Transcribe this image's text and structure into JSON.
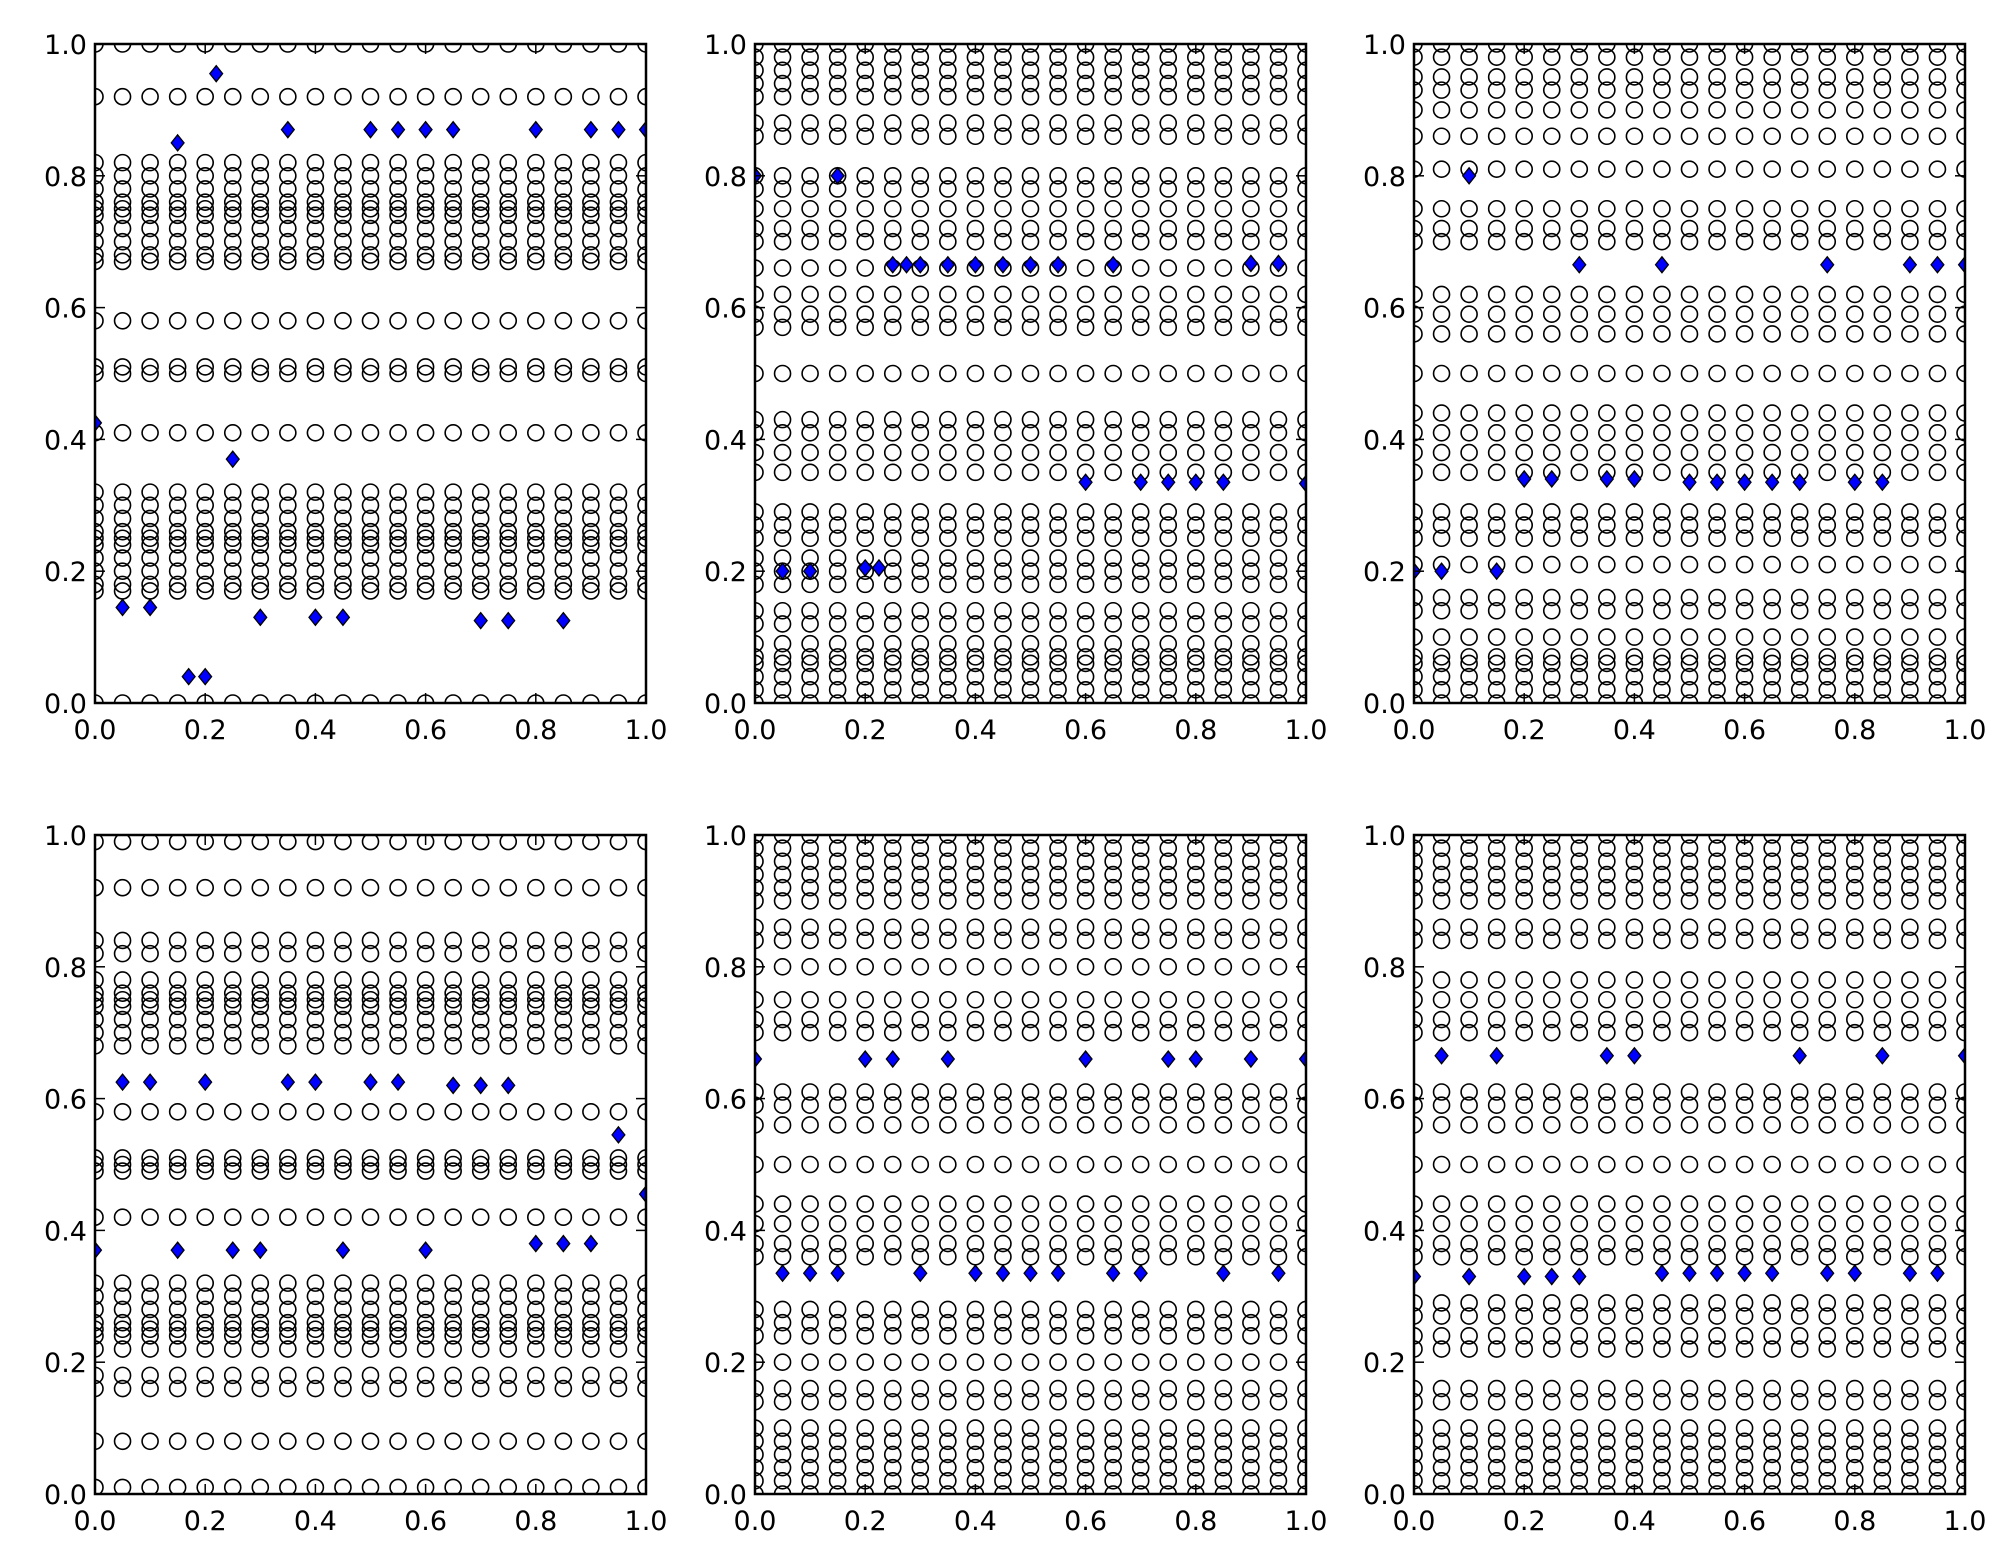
{
  "chart_data": [
    {
      "type": "scatter",
      "xlim": [
        0,
        1
      ],
      "ylim": [
        0,
        1
      ],
      "xticks": [
        {
          "value": 0,
          "label": "0.0"
        },
        {
          "value": 0.2,
          "label": "0.2"
        },
        {
          "value": 0.4,
          "label": "0.4"
        },
        {
          "value": 0.6,
          "label": "0.6"
        },
        {
          "value": 0.8,
          "label": "0.8"
        },
        {
          "value": 1,
          "label": "1.0"
        }
      ],
      "yticks": [
        {
          "value": 0,
          "label": "0.0"
        },
        {
          "value": 0.2,
          "label": "0.2"
        },
        {
          "value": 0.4,
          "label": "0.4"
        },
        {
          "value": 0.6,
          "label": "0.6"
        },
        {
          "value": 0.8,
          "label": "0.8"
        },
        {
          "value": 1,
          "label": "1.0"
        }
      ],
      "series": [
        {
          "marker": "circle",
          "color": "none",
          "edgecolor": "#000000",
          "grid_x": [
            0,
            0.05,
            0.1,
            0.15,
            0.2,
            0.25,
            0.3,
            0.35,
            0.4,
            0.45,
            0.5,
            0.55,
            0.6,
            0.65,
            0.7,
            0.75,
            0.8,
            0.85,
            0.9,
            0.95,
            1
          ],
          "grid_y": [
            0,
            0.17,
            0.18,
            0.2,
            0.22,
            0.24,
            0.25,
            0.26,
            0.28,
            0.3,
            0.32,
            0.41,
            0.5,
            0.51,
            0.58,
            0.67,
            0.68,
            0.7,
            0.72,
            0.74,
            0.75,
            0.76,
            0.78,
            0.8,
            0.82,
            0.92,
            1
          ]
        },
        {
          "marker": "diamond",
          "color": "#0000ff",
          "edgecolor": "#000000",
          "x": [
            0,
            0.05,
            0.1,
            0.15,
            0.17,
            0.2,
            0.22,
            0.25,
            0.3,
            0.35,
            0.4,
            0.45,
            0.5,
            0.55,
            0.6,
            0.65,
            0.7,
            0.75,
            0.8,
            0.85,
            0.9,
            0.95,
            1
          ],
          "y": [
            0.425,
            0.145,
            0.145,
            0.85,
            0.04,
            0.04,
            0.955,
            0.37,
            0.13,
            0.87,
            0.13,
            0.13,
            0.87,
            0.87,
            0.87,
            0.87,
            0.125,
            0.125,
            0.87,
            0.125,
            0.87,
            0.87,
            0.87
          ]
        }
      ]
    },
    {
      "type": "scatter",
      "xlim": [
        0,
        1
      ],
      "ylim": [
        0,
        1
      ],
      "xticks": [
        {
          "value": 0,
          "label": "0.0"
        },
        {
          "value": 0.2,
          "label": "0.2"
        },
        {
          "value": 0.4,
          "label": "0.4"
        },
        {
          "value": 0.6,
          "label": "0.6"
        },
        {
          "value": 0.8,
          "label": "0.8"
        },
        {
          "value": 1,
          "label": "1.0"
        }
      ],
      "yticks": [
        {
          "value": 0,
          "label": "0.0"
        },
        {
          "value": 0.2,
          "label": "0.2"
        },
        {
          "value": 0.4,
          "label": "0.4"
        },
        {
          "value": 0.6,
          "label": "0.6"
        },
        {
          "value": 0.8,
          "label": "0.8"
        },
        {
          "value": 1,
          "label": "1.0"
        }
      ],
      "series": [
        {
          "marker": "circle",
          "color": "none",
          "edgecolor": "#000000",
          "grid_x": [
            0,
            0.05,
            0.1,
            0.15,
            0.2,
            0.25,
            0.3,
            0.35,
            0.4,
            0.45,
            0.5,
            0.55,
            0.6,
            0.65,
            0.7,
            0.75,
            0.8,
            0.85,
            0.9,
            0.95,
            1
          ],
          "grid_y": [
            0,
            0.02,
            0.04,
            0.06,
            0.07,
            0.09,
            0.12,
            0.14,
            0.18,
            0.2,
            0.22,
            0.25,
            0.27,
            0.29,
            0.35,
            0.38,
            0.41,
            0.43,
            0.5,
            0.57,
            0.59,
            0.62,
            0.66,
            0.7,
            0.72,
            0.75,
            0.78,
            0.8,
            0.86,
            0.88,
            0.92,
            0.94,
            0.96,
            0.98,
            1
          ]
        },
        {
          "marker": "diamond",
          "color": "#0000ff",
          "edgecolor": "#000000",
          "x": [
            0,
            0.05,
            0.1,
            0.15,
            0.2,
            0.225,
            0.25,
            0.275,
            0.3,
            0.35,
            0.4,
            0.45,
            0.5,
            0.55,
            0.6,
            0.65,
            0.7,
            0.75,
            0.8,
            0.85,
            0.9,
            0.95,
            1
          ],
          "y": [
            0.8,
            0.2,
            0.2,
            0.8,
            0.205,
            0.205,
            0.665,
            0.665,
            0.665,
            0.665,
            0.665,
            0.665,
            0.665,
            0.665,
            0.335,
            0.665,
            0.335,
            0.335,
            0.335,
            0.335,
            0.667,
            0.667,
            0.333
          ]
        }
      ]
    },
    {
      "type": "scatter",
      "xlim": [
        0,
        1
      ],
      "ylim": [
        0,
        1
      ],
      "xticks": [
        {
          "value": 0,
          "label": "0.0"
        },
        {
          "value": 0.2,
          "label": "0.2"
        },
        {
          "value": 0.4,
          "label": "0.4"
        },
        {
          "value": 0.6,
          "label": "0.6"
        },
        {
          "value": 0.8,
          "label": "0.8"
        },
        {
          "value": 1,
          "label": "1.0"
        }
      ],
      "yticks": [
        {
          "value": 0,
          "label": "0.0"
        },
        {
          "value": 0.2,
          "label": "0.2"
        },
        {
          "value": 0.4,
          "label": "0.4"
        },
        {
          "value": 0.6,
          "label": "0.6"
        },
        {
          "value": 0.8,
          "label": "0.8"
        },
        {
          "value": 1,
          "label": "1.0"
        }
      ],
      "series": [
        {
          "marker": "circle",
          "color": "none",
          "edgecolor": "#000000",
          "grid_x": [
            0,
            0.05,
            0.1,
            0.15,
            0.2,
            0.25,
            0.3,
            0.35,
            0.4,
            0.45,
            0.5,
            0.55,
            0.6,
            0.65,
            0.7,
            0.75,
            0.8,
            0.85,
            0.9,
            0.95,
            1
          ],
          "grid_y": [
            0,
            0.02,
            0.04,
            0.06,
            0.07,
            0.1,
            0.14,
            0.16,
            0.21,
            0.25,
            0.27,
            0.29,
            0.35,
            0.38,
            0.41,
            0.44,
            0.5,
            0.56,
            0.59,
            0.62,
            0.7,
            0.72,
            0.75,
            0.81,
            0.86,
            0.9,
            0.93,
            0.95,
            0.98,
            1
          ]
        },
        {
          "marker": "diamond",
          "color": "#0000ff",
          "edgecolor": "#000000",
          "x": [
            0,
            0.05,
            0.1,
            0.15,
            0.2,
            0.25,
            0.3,
            0.35,
            0.4,
            0.45,
            0.5,
            0.55,
            0.6,
            0.65,
            0.7,
            0.75,
            0.8,
            0.85,
            0.9,
            0.95,
            1
          ],
          "y": [
            0.2,
            0.2,
            0.8,
            0.2,
            0.34,
            0.34,
            0.665,
            0.34,
            0.34,
            0.665,
            0.335,
            0.335,
            0.335,
            0.335,
            0.335,
            0.665,
            0.335,
            0.335,
            0.665,
            0.665,
            0.665
          ]
        }
      ]
    },
    {
      "type": "scatter",
      "xlim": [
        0,
        1
      ],
      "ylim": [
        0,
        1
      ],
      "xticks": [
        {
          "value": 0,
          "label": "0.0"
        },
        {
          "value": 0.2,
          "label": "0.2"
        },
        {
          "value": 0.4,
          "label": "0.4"
        },
        {
          "value": 0.6,
          "label": "0.6"
        },
        {
          "value": 0.8,
          "label": "0.8"
        },
        {
          "value": 1,
          "label": "1.0"
        }
      ],
      "yticks": [
        {
          "value": 0,
          "label": "0.0"
        },
        {
          "value": 0.2,
          "label": "0.2"
        },
        {
          "value": 0.4,
          "label": "0.4"
        },
        {
          "value": 0.6,
          "label": "0.6"
        },
        {
          "value": 0.8,
          "label": "0.8"
        },
        {
          "value": 1,
          "label": "1.0"
        }
      ],
      "series": [
        {
          "marker": "circle",
          "color": "none",
          "edgecolor": "#000000",
          "grid_x": [
            0,
            0.05,
            0.1,
            0.15,
            0.2,
            0.25,
            0.3,
            0.35,
            0.4,
            0.45,
            0.5,
            0.55,
            0.6,
            0.65,
            0.7,
            0.75,
            0.8,
            0.85,
            0.9,
            0.95,
            1
          ],
          "grid_y": [
            0.01,
            0.08,
            0.16,
            0.18,
            0.22,
            0.24,
            0.25,
            0.26,
            0.28,
            0.3,
            0.32,
            0.42,
            0.49,
            0.5,
            0.51,
            0.58,
            0.68,
            0.7,
            0.72,
            0.74,
            0.75,
            0.76,
            0.78,
            0.82,
            0.84,
            0.92,
            0.99
          ]
        },
        {
          "marker": "diamond",
          "color": "#0000ff",
          "edgecolor": "#000000",
          "x": [
            0,
            0.05,
            0.1,
            0.15,
            0.2,
            0.25,
            0.3,
            0.35,
            0.4,
            0.45,
            0.5,
            0.55,
            0.6,
            0.65,
            0.7,
            0.75,
            0.8,
            0.85,
            0.9,
            0.95,
            1
          ],
          "y": [
            0.37,
            0.625,
            0.625,
            0.37,
            0.625,
            0.37,
            0.37,
            0.625,
            0.625,
            0.37,
            0.625,
            0.625,
            0.37,
            0.62,
            0.62,
            0.62,
            0.38,
            0.38,
            0.38,
            0.545,
            0.455
          ]
        }
      ]
    },
    {
      "type": "scatter",
      "xlim": [
        0,
        1
      ],
      "ylim": [
        0,
        1
      ],
      "xticks": [
        {
          "value": 0,
          "label": "0.0"
        },
        {
          "value": 0.2,
          "label": "0.2"
        },
        {
          "value": 0.4,
          "label": "0.4"
        },
        {
          "value": 0.6,
          "label": "0.6"
        },
        {
          "value": 0.8,
          "label": "0.8"
        },
        {
          "value": 1,
          "label": "1.0"
        }
      ],
      "yticks": [
        {
          "value": 0,
          "label": "0.0"
        },
        {
          "value": 0.2,
          "label": "0.2"
        },
        {
          "value": 0.4,
          "label": "0.4"
        },
        {
          "value": 0.6,
          "label": "0.6"
        },
        {
          "value": 0.8,
          "label": "0.8"
        },
        {
          "value": 1,
          "label": "1.0"
        }
      ],
      "series": [
        {
          "marker": "circle",
          "color": "none",
          "edgecolor": "#000000",
          "grid_x": [
            0,
            0.05,
            0.1,
            0.15,
            0.2,
            0.25,
            0.3,
            0.35,
            0.4,
            0.45,
            0.5,
            0.55,
            0.6,
            0.65,
            0.7,
            0.75,
            0.8,
            0.85,
            0.9,
            0.95,
            1
          ],
          "grid_y": [
            0,
            0.02,
            0.04,
            0.06,
            0.08,
            0.1,
            0.14,
            0.16,
            0.2,
            0.24,
            0.26,
            0.28,
            0.36,
            0.38,
            0.41,
            0.44,
            0.5,
            0.56,
            0.59,
            0.61,
            0.7,
            0.72,
            0.75,
            0.8,
            0.84,
            0.86,
            0.9,
            0.92,
            0.94,
            0.96,
            0.98,
            1
          ]
        },
        {
          "marker": "diamond",
          "color": "#0000ff",
          "edgecolor": "#000000",
          "x": [
            0,
            0.05,
            0.1,
            0.15,
            0.2,
            0.25,
            0.3,
            0.35,
            0.4,
            0.45,
            0.5,
            0.55,
            0.6,
            0.65,
            0.7,
            0.75,
            0.8,
            0.85,
            0.9,
            0.95,
            1
          ],
          "y": [
            0.66,
            0.335,
            0.335,
            0.335,
            0.66,
            0.66,
            0.335,
            0.66,
            0.335,
            0.335,
            0.335,
            0.335,
            0.66,
            0.335,
            0.335,
            0.66,
            0.66,
            0.335,
            0.66,
            0.335,
            0.66
          ]
        }
      ]
    },
    {
      "type": "scatter",
      "xlim": [
        0,
        1
      ],
      "ylim": [
        0,
        1
      ],
      "xticks": [
        {
          "value": 0,
          "label": "0.0"
        },
        {
          "value": 0.2,
          "label": "0.2"
        },
        {
          "value": 0.4,
          "label": "0.4"
        },
        {
          "value": 0.6,
          "label": "0.6"
        },
        {
          "value": 0.8,
          "label": "0.8"
        },
        {
          "value": 1,
          "label": "1.0"
        }
      ],
      "yticks": [
        {
          "value": 0,
          "label": "0.0"
        },
        {
          "value": 0.2,
          "label": "0.2"
        },
        {
          "value": 0.4,
          "label": "0.4"
        },
        {
          "value": 0.6,
          "label": "0.6"
        },
        {
          "value": 0.8,
          "label": "0.8"
        },
        {
          "value": 1,
          "label": "1.0"
        }
      ],
      "series": [
        {
          "marker": "circle",
          "color": "none",
          "edgecolor": "#000000",
          "grid_x": [
            0,
            0.05,
            0.1,
            0.15,
            0.2,
            0.25,
            0.3,
            0.35,
            0.4,
            0.45,
            0.5,
            0.55,
            0.6,
            0.65,
            0.7,
            0.75,
            0.8,
            0.85,
            0.9,
            0.95,
            1
          ],
          "grid_y": [
            0,
            0.02,
            0.04,
            0.06,
            0.08,
            0.1,
            0.14,
            0.16,
            0.22,
            0.24,
            0.27,
            0.29,
            0.36,
            0.38,
            0.41,
            0.44,
            0.5,
            0.56,
            0.59,
            0.61,
            0.7,
            0.72,
            0.75,
            0.78,
            0.84,
            0.86,
            0.9,
            0.92,
            0.94,
            0.96,
            0.98,
            1
          ]
        },
        {
          "marker": "diamond",
          "color": "#0000ff",
          "edgecolor": "#000000",
          "x": [
            0,
            0.05,
            0.1,
            0.15,
            0.2,
            0.25,
            0.3,
            0.35,
            0.4,
            0.45,
            0.5,
            0.55,
            0.6,
            0.65,
            0.7,
            0.75,
            0.8,
            0.85,
            0.9,
            0.95,
            1
          ],
          "y": [
            0.33,
            0.665,
            0.33,
            0.665,
            0.33,
            0.33,
            0.33,
            0.665,
            0.665,
            0.335,
            0.335,
            0.335,
            0.335,
            0.335,
            0.665,
            0.335,
            0.335,
            0.665,
            0.335,
            0.335,
            0.665
          ]
        }
      ]
    }
  ]
}
